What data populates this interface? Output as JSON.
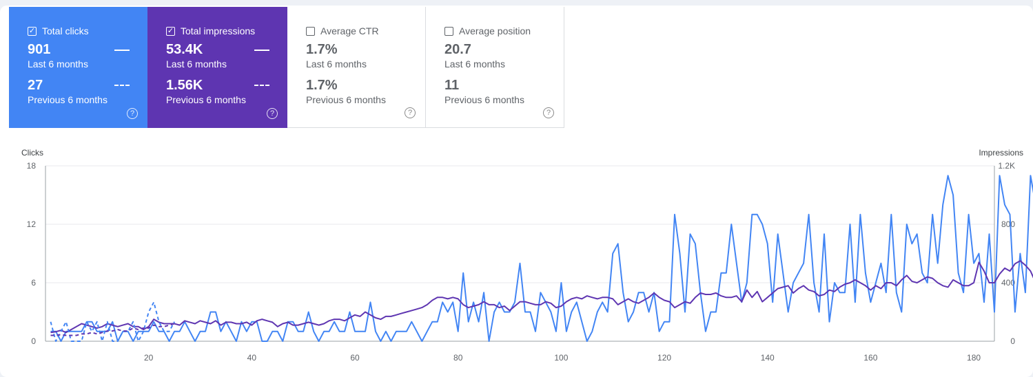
{
  "cards": [
    {
      "id": "clicks",
      "label": "Total clicks",
      "checked": true,
      "check_glyph": "✓",
      "current": "901",
      "current_period": "Last 6 months",
      "previous": "27",
      "previous_period": "Previous 6 months",
      "help_glyph": "?"
    },
    {
      "id": "impr",
      "label": "Total impressions",
      "checked": true,
      "check_glyph": "✓",
      "current": "53.4K",
      "current_period": "Last 6 months",
      "previous": "1.56K",
      "previous_period": "Previous 6 months",
      "help_glyph": "?"
    },
    {
      "id": "ctr",
      "label": "Average CTR",
      "checked": false,
      "check_glyph": "",
      "current": "1.7%",
      "current_period": "Last 6 months",
      "previous": "1.7%",
      "previous_period": "Previous 6 months",
      "help_glyph": "?"
    },
    {
      "id": "pos",
      "label": "Average position",
      "checked": false,
      "check_glyph": "",
      "current": "20.7",
      "current_period": "Last 6 months",
      "previous": "11",
      "previous_period": "Previous 6 months",
      "help_glyph": "?"
    }
  ],
  "colors": {
    "clicks": "#4285f4",
    "impressions": "#5e35b1",
    "grid": "#e8eaed",
    "axis": "#5f6368"
  },
  "chart_data": {
    "type": "line",
    "ylabel": "Clicks",
    "y2label": "Impressions",
    "xlim": [
      0,
      184
    ],
    "ylim": [
      0,
      18
    ],
    "y2lim": [
      0,
      1200
    ],
    "yticks": [
      "0",
      "6",
      "12",
      "18"
    ],
    "y2ticks": [
      "0",
      "400",
      "800",
      "1.2K"
    ],
    "xticks": [
      "20",
      "40",
      "60",
      "80",
      "100",
      "120",
      "140",
      "160",
      "180"
    ],
    "series": [
      {
        "name": "Clicks",
        "axis": "left",
        "style": "solid",
        "values": [
          1,
          1,
          0,
          1,
          1,
          1,
          1,
          2,
          2,
          1,
          1,
          1,
          2,
          0,
          1,
          1,
          0,
          1,
          1,
          1,
          2,
          1,
          1,
          0,
          1,
          1,
          2,
          1,
          0,
          1,
          1,
          3,
          3,
          1,
          2,
          1,
          0,
          2,
          1,
          2,
          2,
          0,
          0,
          1,
          1,
          0,
          2,
          2,
          1,
          1,
          3,
          1,
          0,
          1,
          1,
          2,
          1,
          1,
          3,
          1,
          1,
          1,
          4,
          1,
          0,
          1,
          0,
          1,
          1,
          1,
          2,
          1,
          0,
          1,
          2,
          2,
          4,
          3,
          4,
          1,
          7,
          2,
          4,
          2,
          5,
          0,
          3,
          4,
          3,
          3,
          4,
          8,
          3,
          3,
          1,
          5,
          4,
          3,
          1,
          6,
          1,
          3,
          4,
          2,
          0,
          1,
          3,
          4,
          3,
          9,
          10,
          5,
          2,
          3,
          5,
          5,
          3,
          5,
          1,
          2,
          2,
          13,
          9,
          3,
          11,
          10,
          5,
          1,
          3,
          3,
          7,
          7,
          12,
          8,
          4,
          6,
          13,
          13,
          12,
          10,
          4,
          11,
          7,
          3,
          6,
          7,
          8,
          13,
          6,
          3,
          11,
          2,
          6,
          5,
          5,
          12,
          4,
          13,
          7,
          4,
          6,
          8,
          5,
          13,
          5,
          3,
          12,
          10,
          11,
          7,
          6,
          13,
          8,
          14,
          17,
          15,
          7,
          5,
          13,
          8,
          9,
          4,
          11,
          3,
          17,
          14,
          13,
          3,
          9,
          5,
          17,
          14
        ]
      },
      {
        "name": "Impressions",
        "axis": "right",
        "style": "solid",
        "values": [
          60,
          65,
          75,
          60,
          80,
          100,
          120,
          110,
          100,
          90,
          100,
          120,
          110,
          100,
          110,
          120,
          100,
          100,
          80,
          100,
          150,
          130,
          120,
          120,
          120,
          110,
          140,
          130,
          120,
          140,
          130,
          120,
          140,
          110,
          130,
          130,
          120,
          120,
          130,
          110,
          140,
          150,
          140,
          130,
          100,
          120,
          130,
          110,
          110,
          120,
          130,
          120,
          110,
          120,
          140,
          150,
          150,
          140,
          160,
          180,
          170,
          200,
          180,
          160,
          150,
          170,
          170,
          180,
          190,
          200,
          210,
          220,
          230,
          250,
          280,
          300,
          300,
          290,
          300,
          290,
          250,
          230,
          240,
          250,
          270,
          250,
          250,
          230,
          240,
          210,
          240,
          270,
          270,
          260,
          250,
          250,
          270,
          260,
          230,
          240,
          270,
          290,
          300,
          290,
          310,
          300,
          290,
          300,
          300,
          290,
          250,
          270,
          290,
          270,
          260,
          280,
          300,
          330,
          300,
          280,
          270,
          230,
          250,
          270,
          260,
          300,
          330,
          320,
          320,
          330,
          310,
          300,
          300,
          310,
          270,
          350,
          300,
          340,
          270,
          300,
          330,
          360,
          370,
          380,
          330,
          360,
          380,
          350,
          340,
          310,
          320,
          350,
          340,
          370,
          390,
          400,
          420,
          400,
          380,
          350,
          380,
          360,
          400,
          400,
          380,
          420,
          450,
          410,
          400,
          420,
          440,
          430,
          400,
          380,
          370,
          420,
          400,
          380,
          380,
          400,
          540,
          480,
          400,
          400,
          460,
          500,
          480,
          530,
          550,
          520,
          480,
          400,
          440,
          470,
          600,
          560,
          430,
          420,
          440,
          430,
          550,
          510,
          500
        ]
      },
      {
        "name": "Clicks (previous 6 months)",
        "axis": "left",
        "style": "dashed",
        "values": [
          2,
          0,
          1,
          2,
          0,
          0,
          0,
          2,
          1,
          2,
          0,
          2,
          0,
          0,
          1,
          1,
          2,
          0,
          1,
          3,
          4,
          2,
          1,
          1,
          2
        ]
      },
      {
        "name": "Impressions (previous 6 months)",
        "axis": "right",
        "style": "dashed",
        "values": [
          40,
          40,
          45,
          40,
          40,
          40,
          50,
          50,
          60,
          50,
          60,
          70,
          70,
          80,
          70,
          70,
          90,
          80,
          90,
          90,
          110,
          100,
          100,
          110,
          120
        ]
      }
    ]
  }
}
